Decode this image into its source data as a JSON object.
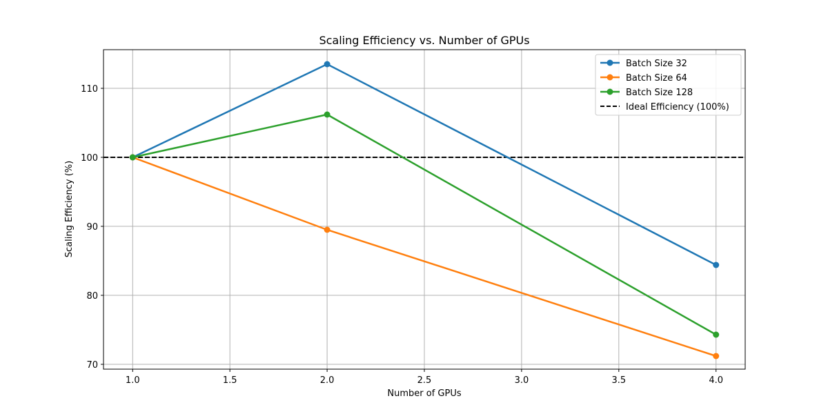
{
  "chart_data": {
    "type": "line",
    "title": "Scaling Efficiency vs. Number of GPUs",
    "xlabel": "Number of GPUs",
    "ylabel": "Scaling Efficiency (%)",
    "x": [
      1,
      2,
      4
    ],
    "xlim": [
      0.85,
      4.15
    ],
    "ylim": [
      69.3,
      115.6
    ],
    "xticks": [
      1.0,
      1.5,
      2.0,
      2.5,
      3.0,
      3.5,
      4.0
    ],
    "xtick_labels": [
      "1.0",
      "1.5",
      "2.0",
      "2.5",
      "3.0",
      "3.5",
      "4.0"
    ],
    "yticks": [
      70,
      80,
      90,
      100,
      110
    ],
    "ytick_labels": [
      "70",
      "80",
      "90",
      "100",
      "110"
    ],
    "grid": true,
    "legend_position": "top-right",
    "series": [
      {
        "name": "Batch Size 32",
        "values": [
          100,
          113.5,
          84.4
        ],
        "color": "#1f77b4"
      },
      {
        "name": "Batch Size 64",
        "values": [
          100,
          89.5,
          71.2
        ],
        "color": "#ff7f0e"
      },
      {
        "name": "Batch Size 128",
        "values": [
          100,
          106.2,
          74.3
        ],
        "color": "#2ca02c"
      }
    ],
    "reference_line": {
      "name": "Ideal Efficiency (100%)",
      "value": 100,
      "color": "#000000",
      "style": "dashed"
    }
  }
}
